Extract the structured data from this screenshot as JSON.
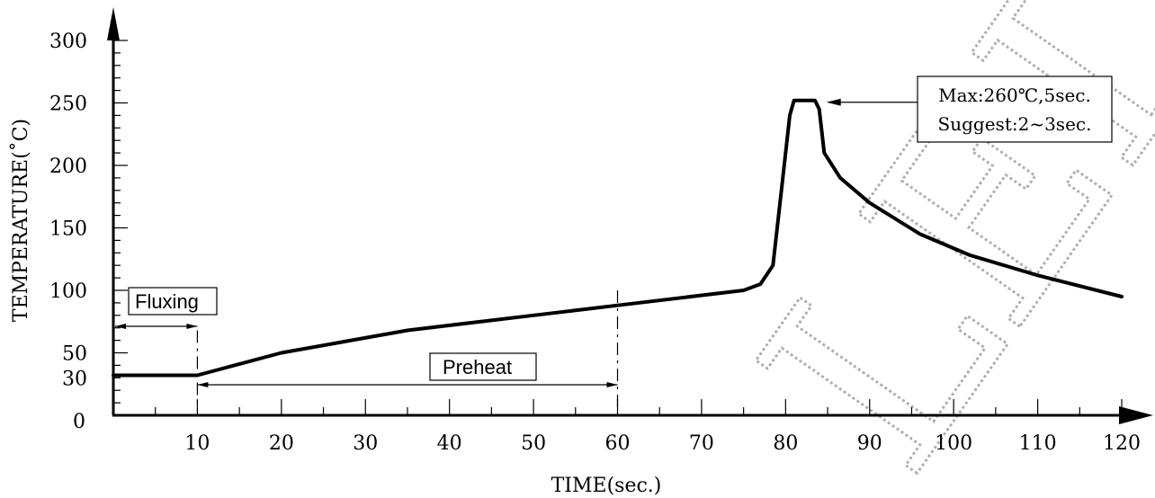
{
  "chart_data": {
    "type": "line",
    "xlabel": "TIME(sec.)",
    "ylabel": "TEMPERATURE(˚C)",
    "xlim": [
      0,
      120
    ],
    "ylim": [
      0,
      300
    ],
    "x_ticks": [
      10,
      20,
      30,
      40,
      50,
      60,
      70,
      80,
      90,
      100,
      110,
      120
    ],
    "y_ticks": [
      0,
      30,
      50,
      100,
      150,
      200,
      250,
      300
    ],
    "series": [
      {
        "points": [
          [
            0,
            32
          ],
          [
            10,
            32
          ],
          [
            20,
            50
          ],
          [
            35,
            68
          ],
          [
            50,
            80
          ],
          [
            60,
            88
          ],
          [
            75,
            100
          ],
          [
            77,
            105
          ],
          [
            78.5,
            120
          ],
          [
            79.5,
            180
          ],
          [
            80.5,
            240
          ],
          [
            81,
            252
          ],
          [
            83.5,
            252
          ],
          [
            84,
            245
          ],
          [
            84.6,
            210
          ],
          [
            86.5,
            190
          ],
          [
            90,
            170
          ],
          [
            96,
            145
          ],
          [
            102,
            128
          ],
          [
            110,
            112
          ],
          [
            120,
            95
          ]
        ]
      }
    ],
    "annotations": [
      {
        "name": "peak",
        "lines": [
          "Max:260℃,5sec.",
          "Suggest:2~3sec."
        ],
        "arrow_to": [
          84,
          252
        ]
      },
      {
        "name": "fluxing",
        "text": "Fluxing",
        "span": [
          0,
          10
        ]
      },
      {
        "name": "preheat",
        "text": "Preheat",
        "span": [
          10,
          60
        ]
      }
    ],
    "grid": false,
    "watermark": "LED"
  }
}
